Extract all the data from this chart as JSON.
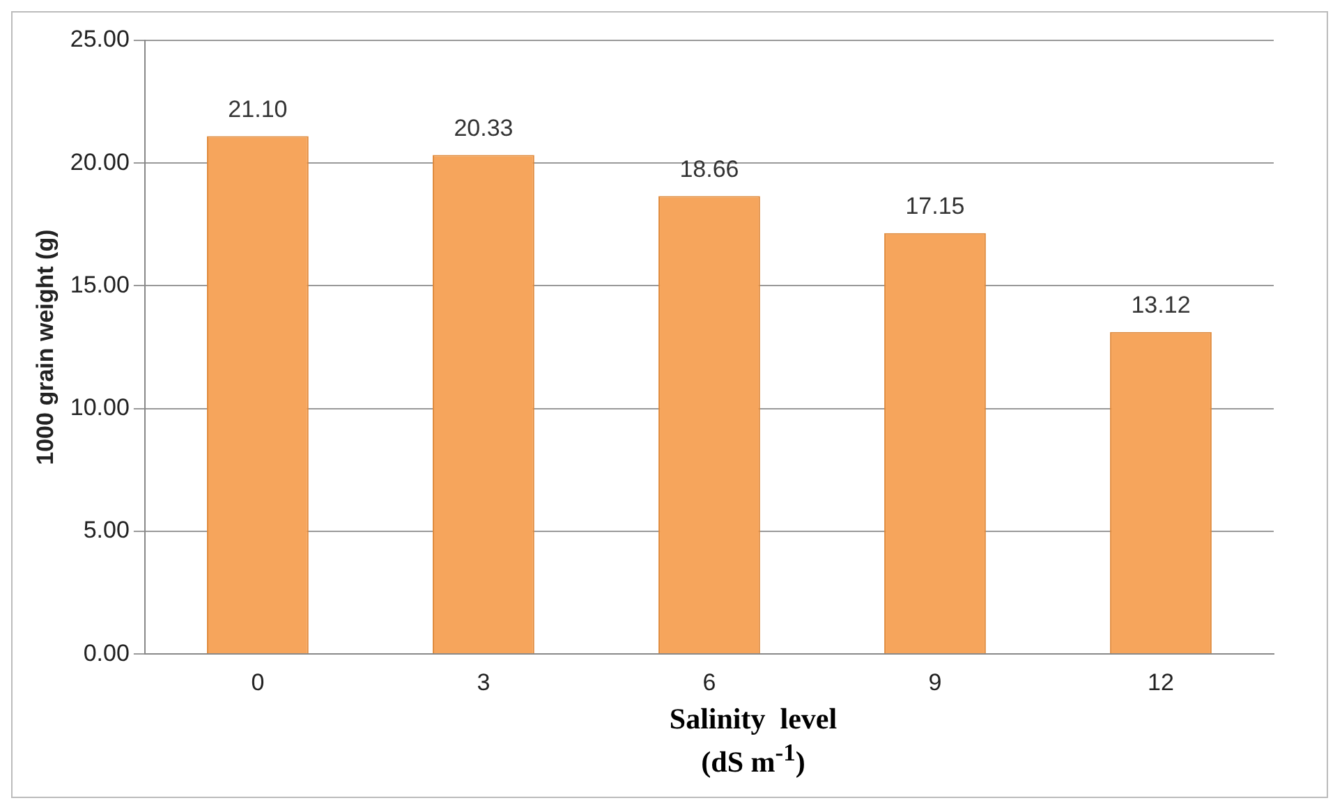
{
  "chart_data": {
    "type": "bar",
    "categories": [
      "0",
      "3",
      "6",
      "9",
      "12"
    ],
    "values": [
      21.1,
      20.33,
      18.66,
      17.15,
      13.12
    ],
    "value_labels": [
      "21.10",
      "20.33",
      "18.66",
      "17.15",
      "13.12"
    ],
    "color": "#f6a55c",
    "xlabel": "Salinity  level\n(dS m$^{-1}$)",
    "ylabel": "1000 grain weight (g)",
    "ylim": [
      0,
      25
    ],
    "yticks": [
      {
        "value": 0,
        "label": "0.00"
      },
      {
        "value": 5,
        "label": "5.00"
      },
      {
        "value": 10,
        "label": "10.00"
      },
      {
        "value": 15,
        "label": "15.00"
      },
      {
        "value": 20,
        "label": "20.00"
      },
      {
        "value": 25,
        "label": "25.00"
      }
    ],
    "grid": "y",
    "legend": false
  }
}
